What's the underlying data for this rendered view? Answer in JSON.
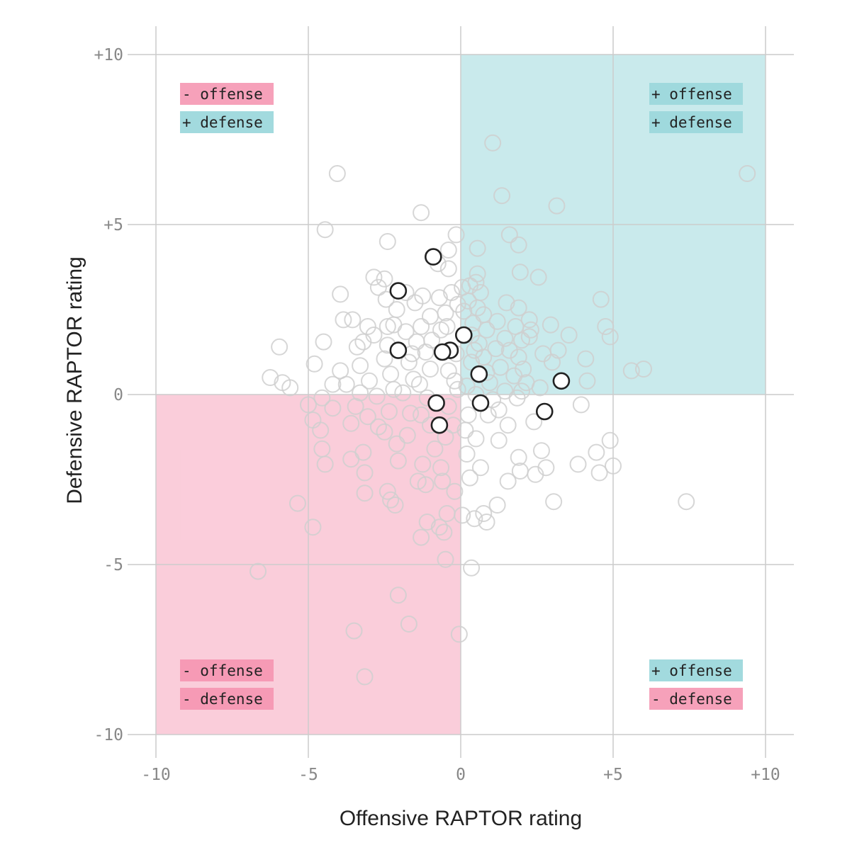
{
  "chart_data": {
    "type": "scatter",
    "title": "",
    "xlabel": "Offensive RAPTOR rating",
    "ylabel": "Defensive RAPTOR rating",
    "xlim": [
      -10,
      10
    ],
    "ylim": [
      -10,
      10
    ],
    "x_ticks": [
      {
        "value": -10,
        "label": "-10"
      },
      {
        "value": -5,
        "label": "-5"
      },
      {
        "value": 0,
        "label": "0"
      },
      {
        "value": 5,
        "label": "+5"
      },
      {
        "value": 10,
        "label": "+10"
      }
    ],
    "y_ticks": [
      {
        "value": 10,
        "label": "+10"
      },
      {
        "value": 5,
        "label": "+5"
      },
      {
        "value": 0,
        "label": "0"
      },
      {
        "value": -5,
        "label": "-5"
      },
      {
        "value": -10,
        "label": "-10"
      }
    ],
    "grid": true,
    "colors": {
      "positive": "#9dd8dc",
      "negative": "#f590ae",
      "highlight_stroke": "#222222",
      "background_stroke": "#cfcfcf"
    },
    "quadrants": [
      {
        "id": "top-left",
        "shaded": false,
        "labels": [
          {
            "text": "- offense",
            "tone": "negative"
          },
          {
            "text": "+ defense",
            "tone": "positive"
          }
        ]
      },
      {
        "id": "top-right",
        "shaded": true,
        "shade": "positive",
        "labels": [
          {
            "text": "+ offense",
            "tone": "positive"
          },
          {
            "text": "+ defense",
            "tone": "positive"
          }
        ]
      },
      {
        "id": "bottom-left",
        "shaded": true,
        "shade": "negative",
        "labels": [
          {
            "text": "- offense",
            "tone": "negative"
          },
          {
            "text": "- defense",
            "tone": "negative"
          }
        ]
      },
      {
        "id": "bottom-right",
        "shaded": false,
        "labels": [
          {
            "text": "+ offense",
            "tone": "positive"
          },
          {
            "text": "- defense",
            "tone": "negative"
          }
        ]
      }
    ],
    "highlighted": [
      {
        "x": -0.9,
        "y": 4.05
      },
      {
        "x": -2.05,
        "y": 3.05
      },
      {
        "x": 0.1,
        "y": 1.75
      },
      {
        "x": -2.05,
        "y": 1.3
      },
      {
        "x": -0.35,
        "y": 1.3
      },
      {
        "x": -0.6,
        "y": 1.25
      },
      {
        "x": 0.6,
        "y": 0.6
      },
      {
        "x": 3.3,
        "y": 0.4
      },
      {
        "x": -0.8,
        "y": -0.25
      },
      {
        "x": 0.65,
        "y": -0.25
      },
      {
        "x": 2.75,
        "y": -0.5
      },
      {
        "x": -0.7,
        "y": -0.9
      }
    ],
    "background": [
      {
        "x": 1.05,
        "y": 7.4
      },
      {
        "x": -4.05,
        "y": 6.5
      },
      {
        "x": 9.4,
        "y": 6.5
      },
      {
        "x": 1.35,
        "y": 5.85
      },
      {
        "x": 3.15,
        "y": 5.55
      },
      {
        "x": -1.3,
        "y": 5.35
      },
      {
        "x": -4.45,
        "y": 4.85
      },
      {
        "x": -0.15,
        "y": 4.7
      },
      {
        "x": 1.6,
        "y": 4.7
      },
      {
        "x": -2.4,
        "y": 4.5
      },
      {
        "x": 1.9,
        "y": 4.4
      },
      {
        "x": 0.55,
        "y": 4.3
      },
      {
        "x": -0.4,
        "y": 4.25
      },
      {
        "x": -0.75,
        "y": 3.85
      },
      {
        "x": -0.4,
        "y": 3.7
      },
      {
        "x": 1.95,
        "y": 3.6
      },
      {
        "x": 2.55,
        "y": 3.45
      },
      {
        "x": 0.55,
        "y": 3.55
      },
      {
        "x": -2.85,
        "y": 3.45
      },
      {
        "x": -2.5,
        "y": 3.4
      },
      {
        "x": 0.5,
        "y": 3.3
      },
      {
        "x": 0.3,
        "y": 3.2
      },
      {
        "x": 0.05,
        "y": 3.15
      },
      {
        "x": -2.7,
        "y": 3.15
      },
      {
        "x": -1.8,
        "y": 3.0
      },
      {
        "x": -0.3,
        "y": 3.0
      },
      {
        "x": 0.65,
        "y": 3.0
      },
      {
        "x": -3.95,
        "y": 2.95
      },
      {
        "x": -1.25,
        "y": 2.9
      },
      {
        "x": -0.7,
        "y": 2.85
      },
      {
        "x": -2.45,
        "y": 2.8
      },
      {
        "x": 0.25,
        "y": 2.75
      },
      {
        "x": -1.5,
        "y": 2.7
      },
      {
        "x": 4.6,
        "y": 2.8
      },
      {
        "x": 1.5,
        "y": 2.7
      },
      {
        "x": -0.1,
        "y": 2.65
      },
      {
        "x": 0.55,
        "y": 2.55
      },
      {
        "x": 1.9,
        "y": 2.55
      },
      {
        "x": -2.1,
        "y": 2.5
      },
      {
        "x": 0.1,
        "y": 2.45
      },
      {
        "x": -0.5,
        "y": 2.4
      },
      {
        "x": 0.75,
        "y": 2.35
      },
      {
        "x": -1.0,
        "y": 2.3
      },
      {
        "x": -3.85,
        "y": 2.2
      },
      {
        "x": -3.55,
        "y": 2.2
      },
      {
        "x": 1.2,
        "y": 2.15
      },
      {
        "x": 2.25,
        "y": 2.2
      },
      {
        "x": 0.4,
        "y": 2.1
      },
      {
        "x": 2.95,
        "y": 2.05
      },
      {
        "x": 1.8,
        "y": 2.0
      },
      {
        "x": -2.4,
        "y": 2.0
      },
      {
        "x": -2.2,
        "y": 2.05
      },
      {
        "x": -3.05,
        "y": 2.0
      },
      {
        "x": -1.3,
        "y": 2.0
      },
      {
        "x": 4.75,
        "y": 2.0
      },
      {
        "x": 0.85,
        "y": 1.9
      },
      {
        "x": 2.3,
        "y": 1.9
      },
      {
        "x": -0.65,
        "y": 1.9
      },
      {
        "x": -1.8,
        "y": 1.85
      },
      {
        "x": 3.55,
        "y": 1.75
      },
      {
        "x": 0.35,
        "y": 1.75
      },
      {
        "x": -2.85,
        "y": 1.75
      },
      {
        "x": 2.25,
        "y": 1.7
      },
      {
        "x": 4.9,
        "y": 1.7
      },
      {
        "x": 1.45,
        "y": 1.65
      },
      {
        "x": 2.0,
        "y": 1.6
      },
      {
        "x": -0.95,
        "y": 1.6
      },
      {
        "x": -1.45,
        "y": 1.55
      },
      {
        "x": -3.2,
        "y": 1.55
      },
      {
        "x": -4.5,
        "y": 1.55
      },
      {
        "x": 0.6,
        "y": 1.5
      },
      {
        "x": -2.4,
        "y": 1.45
      },
      {
        "x": -5.95,
        "y": 1.4
      },
      {
        "x": -3.4,
        "y": 1.4
      },
      {
        "x": 1.15,
        "y": 1.35
      },
      {
        "x": 3.2,
        "y": 1.3
      },
      {
        "x": -1.15,
        "y": 1.25
      },
      {
        "x": -0.15,
        "y": 1.2
      },
      {
        "x": 0.75,
        "y": 1.1
      },
      {
        "x": 1.9,
        "y": 1.1
      },
      {
        "x": 4.1,
        "y": 1.05
      },
      {
        "x": -2.5,
        "y": 1.05
      },
      {
        "x": 3.0,
        "y": 0.95
      },
      {
        "x": 0.35,
        "y": 0.95
      },
      {
        "x": -1.7,
        "y": 0.95
      },
      {
        "x": -4.8,
        "y": 0.9
      },
      {
        "x": -3.3,
        "y": 0.85
      },
      {
        "x": 1.3,
        "y": 0.8
      },
      {
        "x": 2.05,
        "y": 0.75
      },
      {
        "x": 5.6,
        "y": 0.7
      },
      {
        "x": 6.0,
        "y": 0.75
      },
      {
        "x": -1.0,
        "y": 0.75
      },
      {
        "x": -3.95,
        "y": 0.7
      },
      {
        "x": -0.4,
        "y": 0.7
      },
      {
        "x": -2.3,
        "y": 0.6
      },
      {
        "x": 1.75,
        "y": 0.55
      },
      {
        "x": -6.25,
        "y": 0.5
      },
      {
        "x": -5.85,
        "y": 0.35
      },
      {
        "x": 4.15,
        "y": 0.4
      },
      {
        "x": 2.15,
        "y": 0.35
      },
      {
        "x": 0.95,
        "y": 0.35
      },
      {
        "x": -1.35,
        "y": 0.3
      },
      {
        "x": -3.75,
        "y": 0.3
      },
      {
        "x": -4.2,
        "y": 0.3
      },
      {
        "x": -5.6,
        "y": 0.2
      },
      {
        "x": 0.2,
        "y": 0.25
      },
      {
        "x": 2.6,
        "y": 0.2
      },
      {
        "x": -2.2,
        "y": 0.15
      },
      {
        "x": -0.1,
        "y": 0.15
      },
      {
        "x": 1.45,
        "y": 0.1
      },
      {
        "x": -3.3,
        "y": 0.05
      },
      {
        "x": -1.9,
        "y": 0.05
      },
      {
        "x": 0.5,
        "y": 0.0
      },
      {
        "x": -2.75,
        "y": -0.05
      },
      {
        "x": -4.55,
        "y": -0.1
      },
      {
        "x": -1.1,
        "y": -0.1
      },
      {
        "x": 1.85,
        "y": -0.1
      },
      {
        "x": 3.95,
        "y": -0.3
      },
      {
        "x": -5.0,
        "y": -0.3
      },
      {
        "x": -0.4,
        "y": -0.35
      },
      {
        "x": -3.45,
        "y": -0.35
      },
      {
        "x": -4.2,
        "y": -0.4
      },
      {
        "x": 1.25,
        "y": -0.45
      },
      {
        "x": -2.35,
        "y": -0.5
      },
      {
        "x": -1.65,
        "y": -0.55
      },
      {
        "x": 0.25,
        "y": -0.6
      },
      {
        "x": -3.05,
        "y": -0.65
      },
      {
        "x": -4.85,
        "y": -0.75
      },
      {
        "x": 2.4,
        "y": -0.8
      },
      {
        "x": -3.6,
        "y": -0.85
      },
      {
        "x": -1.0,
        "y": -0.9
      },
      {
        "x": -2.7,
        "y": -0.95
      },
      {
        "x": 1.55,
        "y": -0.9
      },
      {
        "x": -4.6,
        "y": -1.05
      },
      {
        "x": 0.15,
        "y": -1.05
      },
      {
        "x": -1.75,
        "y": -1.2
      },
      {
        "x": -0.5,
        "y": -1.25
      },
      {
        "x": 1.25,
        "y": -1.35
      },
      {
        "x": 4.9,
        "y": -1.35
      },
      {
        "x": -2.1,
        "y": -1.45
      },
      {
        "x": -4.55,
        "y": -1.6
      },
      {
        "x": -0.85,
        "y": -1.6
      },
      {
        "x": 2.65,
        "y": -1.65
      },
      {
        "x": -3.2,
        "y": -1.7
      },
      {
        "x": 4.45,
        "y": -1.7
      },
      {
        "x": 0.2,
        "y": -1.75
      },
      {
        "x": 1.9,
        "y": -1.85
      },
      {
        "x": -3.6,
        "y": -1.9
      },
      {
        "x": -2.05,
        "y": -1.95
      },
      {
        "x": -4.45,
        "y": -2.05
      },
      {
        "x": -1.25,
        "y": -2.05
      },
      {
        "x": 3.85,
        "y": -2.05
      },
      {
        "x": 5.0,
        "y": -2.1
      },
      {
        "x": -0.65,
        "y": -2.15
      },
      {
        "x": 0.65,
        "y": -2.15
      },
      {
        "x": 2.8,
        "y": -2.15
      },
      {
        "x": 1.95,
        "y": -2.25
      },
      {
        "x": -3.15,
        "y": -2.3
      },
      {
        "x": 4.55,
        "y": -2.3
      },
      {
        "x": 2.45,
        "y": -2.35
      },
      {
        "x": 0.3,
        "y": -2.45
      },
      {
        "x": -1.4,
        "y": -2.55
      },
      {
        "x": 1.55,
        "y": -2.55
      },
      {
        "x": -0.6,
        "y": -2.55
      },
      {
        "x": -1.15,
        "y": -2.65
      },
      {
        "x": -3.15,
        "y": -2.9
      },
      {
        "x": -2.4,
        "y": -2.85
      },
      {
        "x": -0.2,
        "y": -2.85
      },
      {
        "x": -2.3,
        "y": -3.1
      },
      {
        "x": 3.05,
        "y": -3.15
      },
      {
        "x": 7.4,
        "y": -3.15
      },
      {
        "x": -5.35,
        "y": -3.2
      },
      {
        "x": -2.15,
        "y": -3.25
      },
      {
        "x": 1.2,
        "y": -3.25
      },
      {
        "x": 0.75,
        "y": -3.5
      },
      {
        "x": -0.45,
        "y": -3.5
      },
      {
        "x": 0.05,
        "y": -3.55
      },
      {
        "x": 0.45,
        "y": -3.65
      },
      {
        "x": 0.85,
        "y": -3.75
      },
      {
        "x": -1.1,
        "y": -3.75
      },
      {
        "x": -0.7,
        "y": -3.9
      },
      {
        "x": -4.85,
        "y": -3.9
      },
      {
        "x": -0.55,
        "y": -4.05
      },
      {
        "x": -1.3,
        "y": -4.2
      },
      {
        "x": -0.5,
        "y": -4.85
      },
      {
        "x": 0.35,
        "y": -5.1
      },
      {
        "x": -6.65,
        "y": -5.2
      },
      {
        "x": -2.05,
        "y": -5.9
      },
      {
        "x": -1.7,
        "y": -6.75
      },
      {
        "x": -3.5,
        "y": -6.95
      },
      {
        "x": -0.05,
        "y": -7.05
      },
      {
        "x": -3.15,
        "y": -8.3
      },
      {
        "x": 0.85,
        "y": 0.65
      },
      {
        "x": -0.2,
        "y": 0.4
      },
      {
        "x": 0.45,
        "y": 1.3
      },
      {
        "x": -1.55,
        "y": 0.45
      },
      {
        "x": 1.05,
        "y": -0.15
      },
      {
        "x": -1.3,
        "y": -0.6
      },
      {
        "x": 0.5,
        "y": -1.3
      },
      {
        "x": -0.25,
        "y": -0.9
      },
      {
        "x": 2.0,
        "y": 0.1
      },
      {
        "x": -2.5,
        "y": -1.1
      },
      {
        "x": 1.6,
        "y": 1.3
      },
      {
        "x": -0.45,
        "y": 2.0
      },
      {
        "x": -1.6,
        "y": 1.2
      },
      {
        "x": 0.9,
        "y": -0.6
      },
      {
        "x": -3.0,
        "y": 0.4
      },
      {
        "x": 2.7,
        "y": 1.2
      }
    ]
  }
}
